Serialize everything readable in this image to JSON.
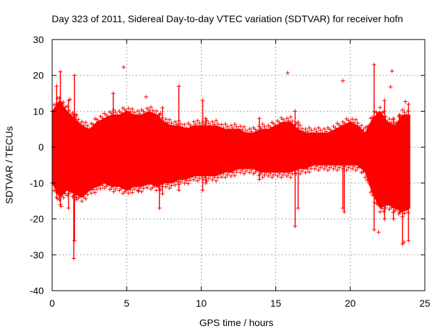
{
  "chart_data": {
    "type": "scatter",
    "title": "Day 323 of 2011, Sidereal Day-to-day VTEC variation (SDTVAR) for receiver hofn",
    "xlabel": "GPS time / hours",
    "ylabel": "SDTVAR / TECUs",
    "xlim": [
      0,
      25
    ],
    "ylim": [
      -40,
      30
    ],
    "xticks": [
      0,
      5,
      10,
      15,
      20,
      25
    ],
    "yticks": [
      -40,
      -30,
      -20,
      -10,
      0,
      10,
      20,
      30
    ],
    "xtick_labels": [
      "0",
      "5",
      "10",
      "15",
      "20",
      "25"
    ],
    "ytick_labels": [
      "-40",
      "-30",
      "-20",
      "-10",
      "0",
      "10",
      "20",
      "30"
    ],
    "grid": true,
    "series_color": "#ff0000",
    "envelope": {
      "x": [
        0.0,
        0.5,
        1.0,
        1.5,
        2.0,
        2.5,
        3.0,
        3.5,
        4.0,
        4.5,
        5.0,
        5.5,
        6.0,
        6.5,
        7.0,
        7.5,
        8.0,
        8.5,
        9.0,
        9.5,
        10.0,
        10.5,
        11.0,
        11.5,
        12.0,
        12.5,
        13.0,
        13.5,
        14.0,
        14.5,
        15.0,
        15.5,
        16.0,
        16.5,
        17.0,
        17.5,
        18.0,
        18.5,
        19.0,
        19.5,
        20.0,
        20.5,
        21.0,
        21.5,
        22.0,
        22.5,
        23.0,
        23.5,
        24.0
      ],
      "upper": [
        10,
        13,
        10,
        8,
        6,
        5,
        7,
        8,
        9,
        9,
        10,
        9,
        9,
        10,
        9,
        7,
        6,
        6,
        5,
        6,
        6,
        6,
        6,
        5,
        5,
        5,
        4,
        4,
        5,
        5,
        6,
        7,
        7,
        5,
        4,
        4,
        4,
        4,
        5,
        6,
        7,
        6,
        4,
        8,
        10,
        7,
        6,
        9,
        9
      ],
      "lower": [
        -10,
        -14,
        -12,
        -13,
        -14,
        -12,
        -11,
        -10,
        -11,
        -11,
        -12,
        -11,
        -11,
        -10,
        -11,
        -10,
        -10,
        -9,
        -9,
        -8,
        -8,
        -8,
        -8,
        -7,
        -7,
        -6,
        -6,
        -6,
        -7,
        -7,
        -7,
        -7,
        -7,
        -6,
        -6,
        -5,
        -5,
        -5,
        -5,
        -5,
        -5,
        -5,
        -7,
        -13,
        -17,
        -16,
        -17,
        -18,
        -17
      ]
    },
    "spikes": [
      {
        "x": 0.3,
        "low": -14,
        "high": 17
      },
      {
        "x": 0.55,
        "low": -16,
        "high": 21
      },
      {
        "x": 0.7,
        "low": -13,
        "high": 12
      },
      {
        "x": 1.1,
        "low": -17,
        "high": 13
      },
      {
        "x": 1.45,
        "low": -31,
        "high": 9
      },
      {
        "x": 1.5,
        "low": -26,
        "high": 20
      },
      {
        "x": 1.6,
        "low": -14,
        "high": 9
      },
      {
        "x": 4.1,
        "low": -10,
        "high": 15
      },
      {
        "x": 7.2,
        "low": -17,
        "high": 9
      },
      {
        "x": 7.4,
        "low": -13,
        "high": 11
      },
      {
        "x": 8.5,
        "low": -12,
        "high": 17
      },
      {
        "x": 10.1,
        "low": -12,
        "high": 13
      },
      {
        "x": 10.3,
        "low": -10,
        "high": 8
      },
      {
        "x": 13.9,
        "low": -9,
        "high": 8
      },
      {
        "x": 16.3,
        "low": -22,
        "high": 10
      },
      {
        "x": 16.5,
        "low": -17,
        "high": 7
      },
      {
        "x": 19.5,
        "low": -17,
        "high": 6
      },
      {
        "x": 19.6,
        "low": -18,
        "high": 4
      },
      {
        "x": 21.6,
        "low": -23,
        "high": 23
      },
      {
        "x": 22.3,
        "low": -20,
        "high": 13
      },
      {
        "x": 22.9,
        "low": -20,
        "high": 8
      },
      {
        "x": 23.3,
        "low": -18,
        "high": 9
      },
      {
        "x": 23.5,
        "low": -27,
        "high": 8
      },
      {
        "x": 23.9,
        "low": -26,
        "high": 12
      }
    ],
    "outliers": [
      {
        "x": 4.8,
        "y": 22.3
      },
      {
        "x": 6.3,
        "y": 14
      },
      {
        "x": 5.8,
        "y": -12.3
      },
      {
        "x": 7.2,
        "y": 9
      },
      {
        "x": 15.8,
        "y": 20.7
      },
      {
        "x": 19.5,
        "y": 18.5
      },
      {
        "x": 21.9,
        "y": -23.7
      },
      {
        "x": 22.8,
        "y": 21.2
      },
      {
        "x": 22.7,
        "y": 16.8
      },
      {
        "x": 23.7,
        "y": 12.7
      },
      {
        "x": 23.6,
        "y": -26.5
      },
      {
        "x": 0.6,
        "y": -16.5
      },
      {
        "x": 1.2,
        "y": 13.3
      }
    ]
  }
}
